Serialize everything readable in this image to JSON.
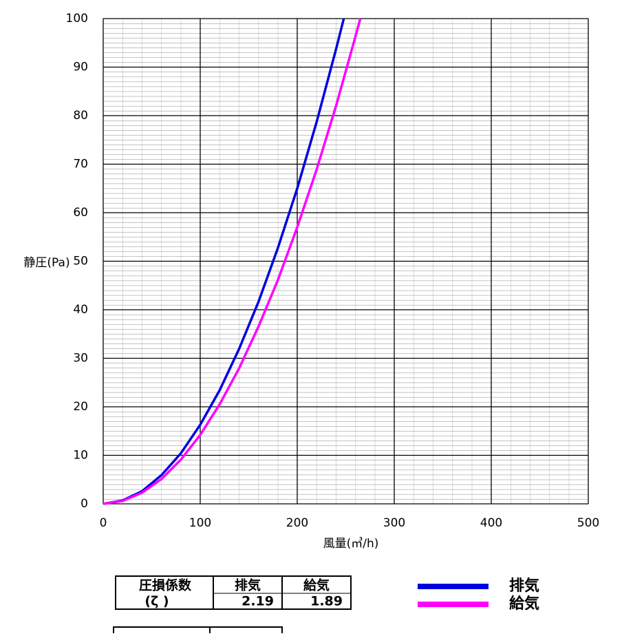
{
  "chart_data": {
    "type": "line",
    "x_label": "風量(㎥/h)",
    "y_label": "静圧(Pa)",
    "xlim": [
      0,
      500
    ],
    "xticks": [
      0,
      100,
      200,
      300,
      400,
      500
    ],
    "ylim": [
      0,
      100
    ],
    "yticks": [
      0,
      10,
      20,
      30,
      40,
      50,
      60,
      70,
      80,
      90,
      100
    ],
    "grid": true,
    "series": [
      {
        "name": "排気",
        "color": "#0000e0",
        "x": [
          0,
          20,
          40,
          60,
          80,
          100,
          120,
          140,
          160,
          180,
          200,
          220,
          240,
          248
        ],
        "values": [
          0,
          0.7,
          2.6,
          5.9,
          10.4,
          16.3,
          23.4,
          31.9,
          41.6,
          52.7,
          65.0,
          78.7,
          93.7,
          100
        ]
      },
      {
        "name": "給気",
        "color": "#ff00ff",
        "x": [
          0,
          20,
          40,
          60,
          80,
          100,
          120,
          140,
          160,
          180,
          200,
          220,
          240,
          260,
          265
        ],
        "values": [
          0,
          0.6,
          2.3,
          5.1,
          9.1,
          14.2,
          20.5,
          27.9,
          36.5,
          46.1,
          57.0,
          68.9,
          82.0,
          96.3,
          100
        ]
      }
    ]
  },
  "table": {
    "header": [
      "圧損係数",
      "排気",
      "給気"
    ],
    "row": [
      "(ζ )",
      2.19,
      1.89
    ]
  }
}
